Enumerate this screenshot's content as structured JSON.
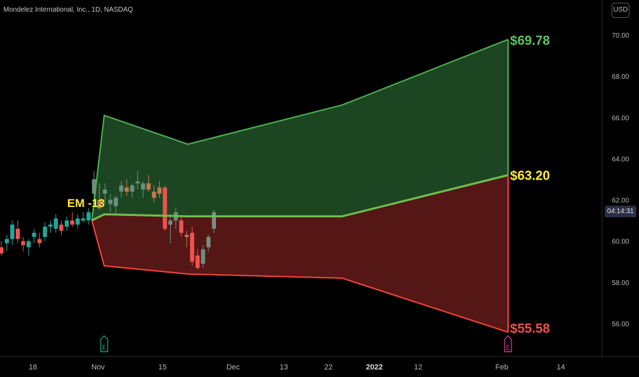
{
  "title": "Mondelez International, Inc., 1D, NASDAQ",
  "currency_label": "USD",
  "countdown": "04:14:31",
  "colors": {
    "background": "#000000",
    "up": "#26a69a",
    "down": "#ef5350",
    "upper_band": "#4caf50",
    "lower_band": "#f44336",
    "mid_band": "#6fbf4f",
    "label_yellow": "#ffeb3b"
  },
  "chart_data": {
    "type": "candlestick",
    "ylim": [
      54.5,
      71.3
    ],
    "y_ticks": [
      56,
      58,
      60,
      62,
      64,
      66,
      68,
      70
    ],
    "y_tick_labels": [
      "56.00",
      "58.00",
      "60.00",
      "62.00",
      "64.00",
      "66.00",
      "68.00",
      "70.00"
    ],
    "x_tick_labels": [
      "18",
      "Nov",
      "15",
      "Dec",
      "13",
      "22",
      "2022",
      "12",
      "Feb",
      "14"
    ],
    "candles": [
      {
        "open": 59.7,
        "high": 60.0,
        "low": 59.3,
        "close": 59.4
      },
      {
        "open": 59.9,
        "high": 60.3,
        "low": 59.5,
        "close": 60.1
      },
      {
        "open": 60.1,
        "high": 61.0,
        "low": 59.8,
        "close": 60.8
      },
      {
        "open": 60.6,
        "high": 61.0,
        "low": 59.9,
        "close": 60.1
      },
      {
        "open": 60.0,
        "high": 60.2,
        "low": 59.5,
        "close": 59.8
      },
      {
        "open": 59.7,
        "high": 60.1,
        "low": 59.3,
        "close": 60.0
      },
      {
        "open": 60.2,
        "high": 60.6,
        "low": 59.9,
        "close": 60.4
      },
      {
        "open": 60.1,
        "high": 60.4,
        "low": 59.7,
        "close": 59.9
      },
      {
        "open": 60.2,
        "high": 60.9,
        "low": 60.0,
        "close": 60.7
      },
      {
        "open": 60.7,
        "high": 61.0,
        "low": 60.4,
        "close": 60.8
      },
      {
        "open": 60.6,
        "high": 61.3,
        "low": 60.4,
        "close": 61.1
      },
      {
        "open": 60.8,
        "high": 61.0,
        "low": 60.3,
        "close": 60.5
      },
      {
        "open": 60.7,
        "high": 61.2,
        "low": 60.5,
        "close": 61.0
      },
      {
        "open": 61.0,
        "high": 61.4,
        "low": 60.7,
        "close": 60.8
      },
      {
        "open": 60.8,
        "high": 61.3,
        "low": 60.6,
        "close": 61.1
      },
      {
        "open": 61.0,
        "high": 61.4,
        "low": 60.9,
        "close": 61.1
      },
      {
        "open": 61.0,
        "high": 61.6,
        "low": 60.8,
        "close": 61.4
      },
      {
        "open": 62.3,
        "high": 63.4,
        "low": 61.8,
        "close": 63.0
      },
      {
        "open": 62.0,
        "high": 62.8,
        "low": 61.5,
        "close": 61.6
      },
      {
        "open": 62.3,
        "high": 62.8,
        "low": 61.8,
        "close": 62.5
      },
      {
        "open": 61.8,
        "high": 62.3,
        "low": 61.4,
        "close": 62.0
      },
      {
        "open": 61.7,
        "high": 62.2,
        "low": 61.3,
        "close": 62.1
      },
      {
        "open": 62.4,
        "high": 62.9,
        "low": 62.1,
        "close": 62.7
      },
      {
        "open": 62.6,
        "high": 63.0,
        "low": 62.2,
        "close": 62.4
      },
      {
        "open": 62.4,
        "high": 62.8,
        "low": 62.1,
        "close": 62.7
      },
      {
        "open": 62.8,
        "high": 63.4,
        "low": 62.5,
        "close": 62.9
      },
      {
        "open": 62.5,
        "high": 62.9,
        "low": 62.1,
        "close": 62.8
      },
      {
        "open": 62.8,
        "high": 63.2,
        "low": 62.4,
        "close": 62.5
      },
      {
        "open": 62.4,
        "high": 62.7,
        "low": 61.9,
        "close": 62.1
      },
      {
        "open": 62.6,
        "high": 62.9,
        "low": 62.1,
        "close": 62.3
      },
      {
        "open": 62.6,
        "high": 62.7,
        "low": 60.5,
        "close": 60.6
      },
      {
        "open": 60.8,
        "high": 61.3,
        "low": 59.9,
        "close": 61.0
      },
      {
        "open": 61.0,
        "high": 61.6,
        "low": 60.6,
        "close": 61.4
      },
      {
        "open": 61.0,
        "high": 61.2,
        "low": 60.2,
        "close": 60.4
      },
      {
        "open": 60.3,
        "high": 60.5,
        "low": 59.7,
        "close": 60.2
      },
      {
        "open": 60.4,
        "high": 60.7,
        "low": 58.8,
        "close": 59.0
      },
      {
        "open": 59.3,
        "high": 59.6,
        "low": 58.6,
        "close": 58.7
      },
      {
        "open": 58.9,
        "high": 59.8,
        "low": 58.7,
        "close": 59.6
      },
      {
        "open": 59.7,
        "high": 60.3,
        "low": 59.5,
        "close": 60.2
      },
      {
        "open": 60.6,
        "high": 61.5,
        "low": 60.4,
        "close": 61.4
      }
    ],
    "bands": {
      "upper": [
        [
          61.0,
          66.1
        ],
        [
          64.7,
          66.6
        ],
        [
          69.78
        ]
      ],
      "middle": [
        61.0,
        61.3,
        61.2,
        63.2
      ],
      "lower": [
        61.0,
        58.8,
        58.4,
        58.2,
        55.58
      ]
    },
    "annotations": {
      "em_label": "EM -13",
      "upper_target": "$69.78",
      "mid_target": "$63.20",
      "lower_target": "$55.58",
      "earnings_marker": "E"
    }
  }
}
